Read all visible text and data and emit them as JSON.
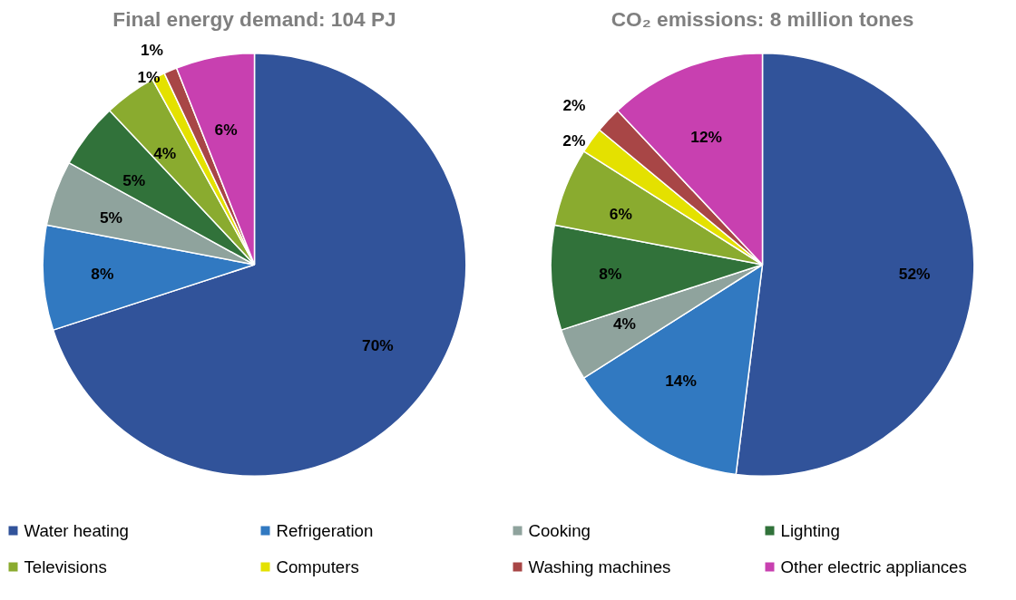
{
  "chart_data": [
    {
      "type": "pie",
      "title": "Final energy demand: 104 PJ",
      "categories": [
        "Water heating",
        "Refrigeration",
        "Cooking",
        "Lighting",
        "Televisions",
        "Computers",
        "Washing machines",
        "Other electric appliances"
      ],
      "values": [
        70,
        8,
        5,
        5,
        4,
        1,
        1,
        6
      ],
      "value_labels": [
        "70%",
        "8%",
        "5%",
        "5%",
        "4%",
        "1%",
        "1%",
        "6%"
      ],
      "colors": [
        "#31539a",
        "#3179c1",
        "#8fa39d",
        "#31723a",
        "#8aab2f",
        "#e4e100",
        "#a84646",
        "#c840b0"
      ],
      "legend": "bottom"
    },
    {
      "type": "pie",
      "title": "CO₂ emissions: 8 million tones",
      "categories": [
        null,
        null,
        null,
        null,
        null,
        null,
        null,
        null
      ],
      "values": [
        52,
        14,
        4,
        8,
        6,
        2,
        2,
        12
      ],
      "value_labels": [
        "52%",
        "14%",
        "4%",
        "8%",
        "6%",
        "2%",
        "2%",
        "12%"
      ],
      "colors": [
        "#31539a",
        "#3179c1",
        "#8fa39d",
        "#31723a",
        "#8aab2f",
        "#e4e100",
        "#a84646",
        "#c840b0"
      ]
    }
  ]
}
